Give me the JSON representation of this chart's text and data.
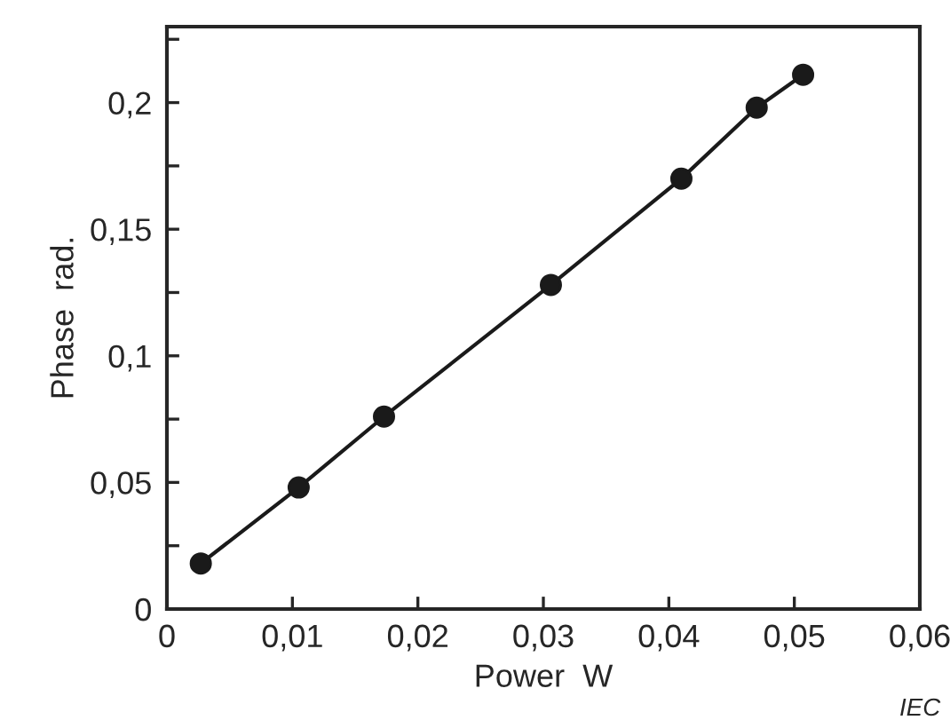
{
  "chart_data": {
    "type": "line",
    "xlabel": "Power  W",
    "ylabel": "Phase  rad.",
    "x": [
      0.0027,
      0.0105,
      0.0173,
      0.0306,
      0.041,
      0.047,
      0.0507
    ],
    "series": [
      {
        "color": "#1a1a1a",
        "values": [
          0.018,
          0.048,
          0.076,
          0.128,
          0.17,
          0.198,
          0.211
        ]
      }
    ],
    "marker": "circle",
    "line_style": "solid",
    "grid": false,
    "legend": false,
    "xlim": [
      0,
      0.06
    ],
    "ylim": [
      0,
      0.23
    ],
    "xticks": [
      {
        "value": 0,
        "label": "0"
      },
      {
        "value": 0.01,
        "label": "0,01"
      },
      {
        "value": 0.02,
        "label": "0,02"
      },
      {
        "value": 0.03,
        "label": "0,03"
      },
      {
        "value": 0.04,
        "label": "0,04"
      },
      {
        "value": 0.05,
        "label": "0,05"
      },
      {
        "value": 0.06,
        "label": "0,06"
      }
    ],
    "yticks": [
      {
        "value": 0,
        "label": "0"
      },
      {
        "value": 0.025,
        "label": null
      },
      {
        "value": 0.05,
        "label": "0,05"
      },
      {
        "value": 0.075,
        "label": null
      },
      {
        "value": 0.1,
        "label": "0,1"
      },
      {
        "value": 0.125,
        "label": null
      },
      {
        "value": 0.15,
        "label": "0,15"
      },
      {
        "value": 0.175,
        "label": null
      },
      {
        "value": 0.2,
        "label": "0,2"
      },
      {
        "value": 0.225,
        "label": null
      }
    ],
    "annotations": [
      "IEC"
    ]
  }
}
